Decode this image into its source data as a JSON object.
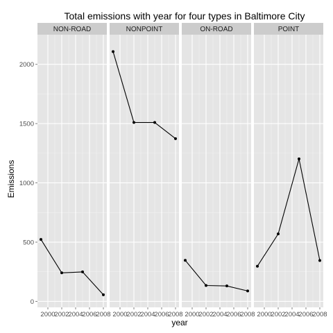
{
  "chart_data": {
    "type": "line",
    "title": "Total emissions with year for four types in Baltimore City",
    "xlabel": "year",
    "ylabel": "Emissions",
    "x": [
      1999,
      2002,
      2005,
      2008
    ],
    "xlim": [
      1998.5,
      2008.5
    ],
    "ylim": [
      -50,
      2250
    ],
    "x_ticks": [
      2000,
      2002,
      2004,
      2006,
      2008
    ],
    "x_tick_labels": [
      "2000",
      "2002",
      "2004",
      "2006",
      "2008"
    ],
    "y_ticks": [
      0,
      500,
      1000,
      1500,
      2000
    ],
    "y_tick_labels": [
      "0",
      "500",
      "1000",
      "1500",
      "2000"
    ],
    "grid": true,
    "facets": [
      {
        "label": "NON-ROAD",
        "values": [
          522.94,
          240.85,
          248.93,
          55.82
        ]
      },
      {
        "label": "NONPOINT",
        "values": [
          2107.63,
          1509.5,
          1509.5,
          1373.21
        ]
      },
      {
        "label": "ON-ROAD",
        "values": [
          346.82,
          134.31,
          130.43,
          88.28
        ]
      },
      {
        "label": "POINT",
        "values": [
          296.8,
          569.26,
          1202.49,
          344.98
        ]
      }
    ],
    "colors": {
      "panel_bg": "#e5e5e5",
      "grid_major": "#ffffff",
      "grid_minor": "#f2f2f2",
      "strip_bg": "#cccccc",
      "line": "#000000"
    }
  }
}
